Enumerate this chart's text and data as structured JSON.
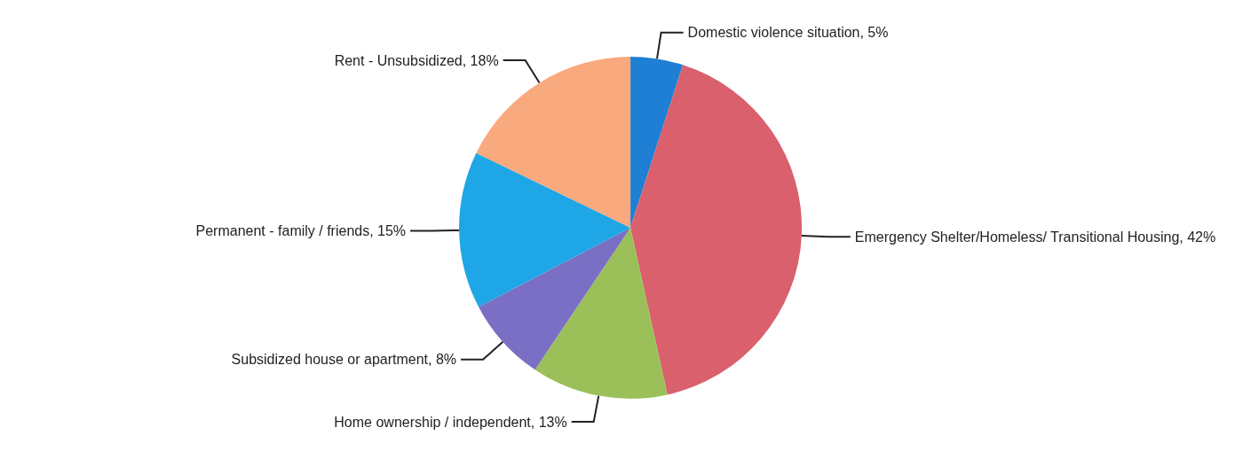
{
  "chart_data": {
    "type": "pie",
    "categories": [
      "Domestic violence situation",
      "Emergency Shelter/Homeless/ Transitional Housing",
      "Home ownership / independent",
      "Subsidized house or apartment",
      "Permanent - family / friends",
      "Rent - Unsubsidized"
    ],
    "values": [
      5,
      42,
      13,
      8,
      15,
      18
    ],
    "value_labels": [
      "5%",
      "42%",
      "13%",
      "8%",
      "15%",
      "18%"
    ],
    "colors": [
      "#1f7fd4",
      "#d9606c",
      "#9bc05a",
      "#7a6fc4",
      "#1fa6e6",
      "#f9a97e"
    ]
  }
}
